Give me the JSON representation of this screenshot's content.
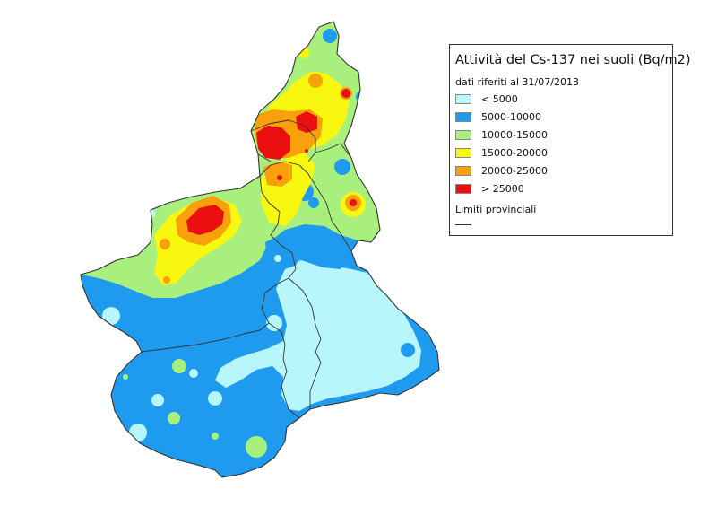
{
  "legend": {
    "title": "Attività del Cs-137 nei suoli (Bq/m2)",
    "subtitle": "dati riferiti al 31/07/2013",
    "classes": [
      {
        "label": "< 5000",
        "color": "#b7f7fb"
      },
      {
        "label": "5000-10000",
        "color": "#1e9bef"
      },
      {
        "label": "10000-15000",
        "color": "#a8ef7d"
      },
      {
        "label": "15000-20000",
        "color": "#f7f70f"
      },
      {
        "label": "20000-25000",
        "color": "#f9a10b"
      },
      {
        "label": "> 25000",
        "color": "#ec0f0f"
      }
    ],
    "boundary_label": "Limiti provinciali",
    "boundary_color": "#333333"
  }
}
